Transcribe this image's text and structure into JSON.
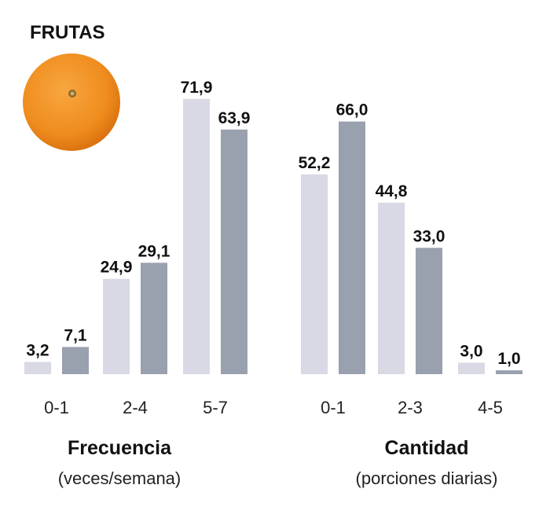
{
  "title": "FRUTAS",
  "colors": {
    "series_a": "#d8d9e4",
    "series_b": "#99a0ae",
    "orange": "#ef8c1d"
  },
  "icon": "orange-fruit-icon",
  "chart_data": [
    {
      "type": "bar",
      "xlabel": "Frecuencia",
      "xlabel_sub": "(veces/semana)",
      "categories": [
        "0-1",
        "2-4",
        "5-7"
      ],
      "series": [
        {
          "values": [
            3.2,
            24.9,
            71.9
          ],
          "labels": [
            "3,2",
            "24,9",
            "71,9"
          ]
        },
        {
          "values": [
            7.1,
            29.1,
            63.9
          ],
          "labels": [
            "7,1",
            "29,1",
            "63,9"
          ]
        }
      ],
      "ylim": [
        0,
        75
      ],
      "grid": false
    },
    {
      "type": "bar",
      "xlabel": "Cantidad",
      "xlabel_sub": "(porciones diarias)",
      "categories": [
        "0-1",
        "2-3",
        "4-5"
      ],
      "series": [
        {
          "values": [
            52.2,
            44.8,
            3.0
          ],
          "labels": [
            "52,2",
            "44,8",
            "3,0"
          ]
        },
        {
          "values": [
            66.0,
            33.0,
            1.0
          ],
          "labels": [
            "66,0",
            "33,0",
            "1,0"
          ]
        }
      ],
      "ylim": [
        0,
        75
      ],
      "grid": false
    }
  ]
}
